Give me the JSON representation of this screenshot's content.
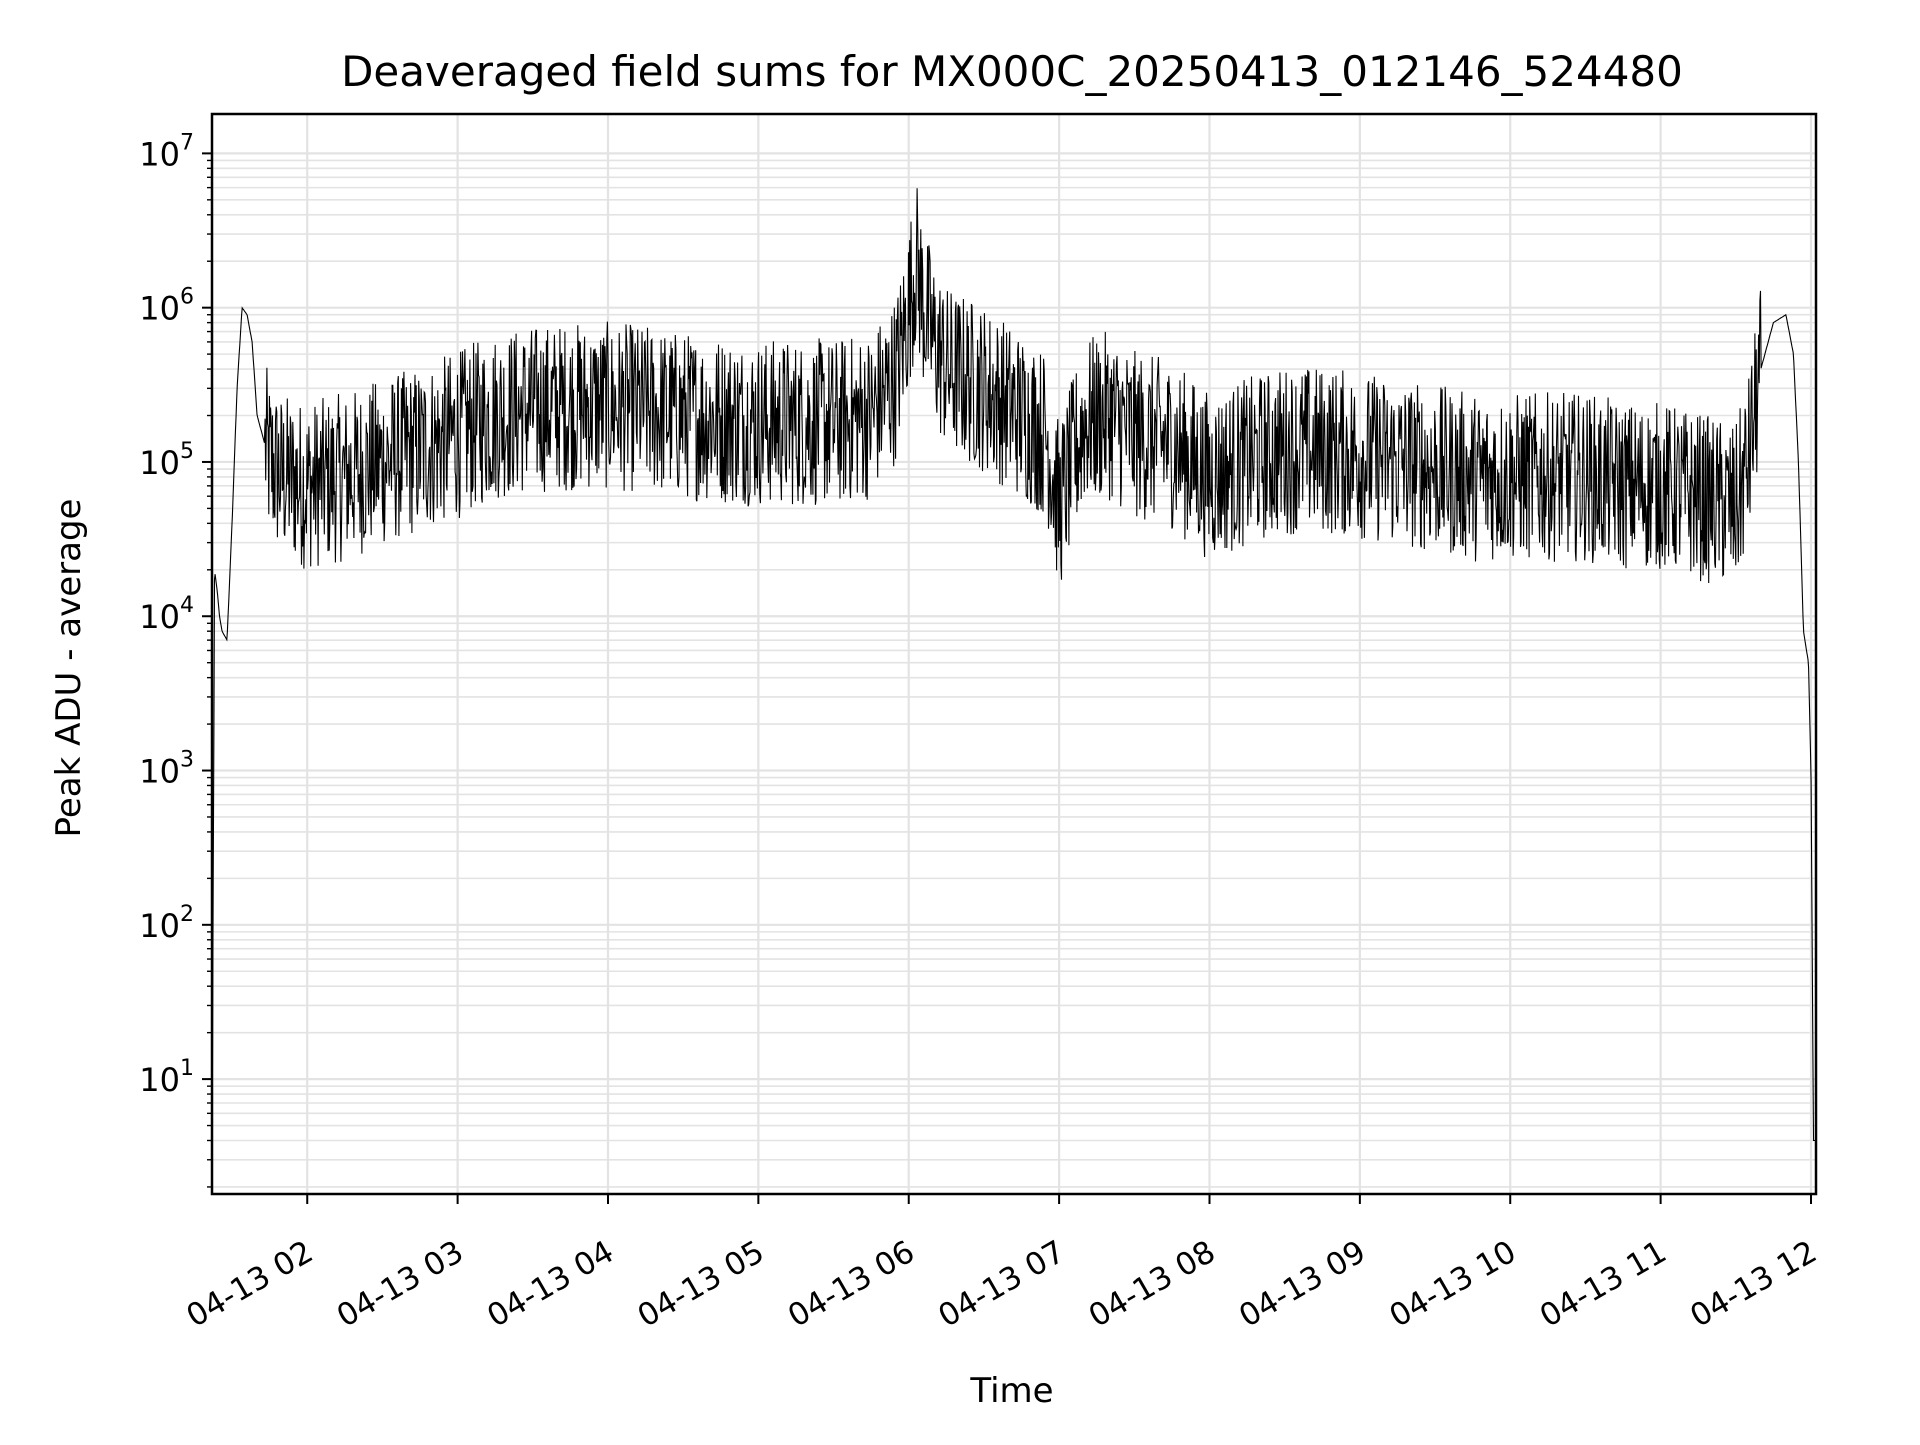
{
  "chart_data": {
    "type": "line",
    "title": "Deaveraged field sums for MX000C_20250413_012146_524480",
    "xlabel": "Time",
    "ylabel": "Peak ADU - average",
    "yscale": "log",
    "ylim": [
      1.8,
      18000000
    ],
    "xlim": [
      "04-13 01:22",
      "04-13 12:02"
    ],
    "grid": true,
    "line_color": "#000000",
    "grid_color": "#e3e3e3",
    "x_ticks": [
      "04-13 02",
      "04-13 03",
      "04-13 04",
      "04-13 05",
      "04-13 06",
      "04-13 07",
      "04-13 08",
      "04-13 09",
      "04-13 10",
      "04-13 11",
      "04-13 12"
    ],
    "y_ticks": [
      {
        "base": "10",
        "exp": "1"
      },
      {
        "base": "10",
        "exp": "2"
      },
      {
        "base": "10",
        "exp": "3"
      },
      {
        "base": "10",
        "exp": "4"
      },
      {
        "base": "10",
        "exp": "5"
      },
      {
        "base": "10",
        "exp": "6"
      },
      {
        "base": "10",
        "exp": "7"
      }
    ],
    "series": [
      {
        "values": {
          "x": [
            "04-13 01:22",
            "04-13 01:23",
            "04-13 01:24",
            "04-13 01:25",
            "04-13 01:26",
            "04-13 01:28",
            "04-13 01:30",
            "04-13 01:32",
            "04-13 01:34",
            "04-13 01:36",
            "04-13 01:38",
            "04-13 01:40",
            "04-13 01:45",
            "04-13 01:50",
            "04-13 02:00",
            "04-13 02:15",
            "04-13 02:30",
            "04-13 02:45",
            "04-13 03:00",
            "04-13 03:15",
            "04-13 03:30",
            "04-13 03:45",
            "04-13 04:00",
            "04-13 04:15",
            "04-13 04:30",
            "04-13 04:45",
            "04-13 05:00",
            "04-13 05:15",
            "04-13 05:30",
            "04-13 05:45",
            "04-13 05:55",
            "04-13 06:00",
            "04-13 06:03",
            "04-13 06:06",
            "04-13 06:10",
            "04-13 06:15",
            "04-13 06:30",
            "04-13 06:45",
            "04-13 06:55",
            "04-13 07:00",
            "04-13 07:10",
            "04-13 07:20",
            "04-13 07:30",
            "04-13 07:45",
            "04-13 08:00",
            "04-13 08:15",
            "04-13 08:30",
            "04-13 08:45",
            "04-13 09:00",
            "04-13 09:15",
            "04-13 09:30",
            "04-13 09:45",
            "04-13 10:00",
            "04-13 10:15",
            "04-13 10:30",
            "04-13 10:45",
            "04-13 11:00",
            "04-13 11:15",
            "04-13 11:30",
            "04-13 11:35",
            "04-13 11:40",
            "04-13 11:45",
            "04-13 11:50",
            "04-13 11:53",
            "04-13 11:55",
            "04-13 11:57",
            "04-13 11:59",
            "04-13 12:00",
            "04-13 12:01",
            "04-13 12:02"
          ],
          "y": [
            2,
            20000,
            15000,
            10000,
            8000,
            7000,
            40000,
            300000,
            1000000,
            900000,
            600000,
            200000,
            100000,
            80000,
            70000,
            80000,
            100000,
            120000,
            150000,
            200000,
            220000,
            230000,
            230000,
            220000,
            200000,
            190000,
            180000,
            180000,
            180000,
            200000,
            350000,
            1000000,
            2000000,
            1000000,
            600000,
            400000,
            300000,
            200000,
            150000,
            50000,
            180000,
            200000,
            150000,
            130000,
            80000,
            100000,
            120000,
            120000,
            110000,
            100000,
            90000,
            80000,
            80000,
            80000,
            80000,
            70000,
            70000,
            60000,
            50000,
            100000,
            400000,
            800000,
            900000,
            500000,
            100000,
            8000,
            5000,
            1000,
            4,
            4
          ]
        }
      }
    ]
  }
}
